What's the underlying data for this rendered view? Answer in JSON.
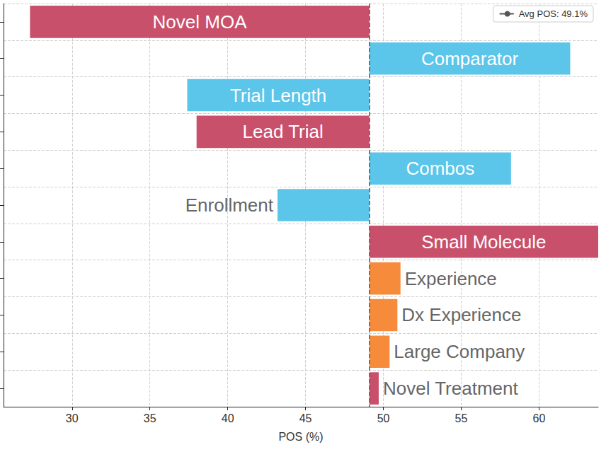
{
  "chart_data": {
    "type": "bar",
    "orientation": "horizontal",
    "categories": [
      "Novel MOA",
      "Comparator",
      "Trial Length",
      "Lead Trial",
      "Combos",
      "Enrollment",
      "Small Molecule",
      "Experience",
      "Dx Experience",
      "Large Company",
      "Novel Treatment"
    ],
    "values": [
      27.3,
      62.0,
      37.4,
      38.0,
      58.2,
      43.2,
      63.8,
      51.1,
      50.9,
      50.4,
      49.7
    ],
    "colors": [
      "#c9506a",
      "#5bc5ea",
      "#5bc5ea",
      "#c9506a",
      "#5bc5ea",
      "#5bc5ea",
      "#c9506a",
      "#f68b3c",
      "#f68b3c",
      "#f68b3c",
      "#c9506a"
    ],
    "avg_line": {
      "value": 49.1,
      "label": "Avg POS: 49.1%"
    },
    "xlabel": "POS (%)",
    "xlim": [
      25.6,
      63.8
    ],
    "xticks": [
      30,
      35,
      40,
      45,
      50,
      55,
      60
    ],
    "grid": true,
    "tick_labels": "x",
    "legend": "upper right"
  }
}
